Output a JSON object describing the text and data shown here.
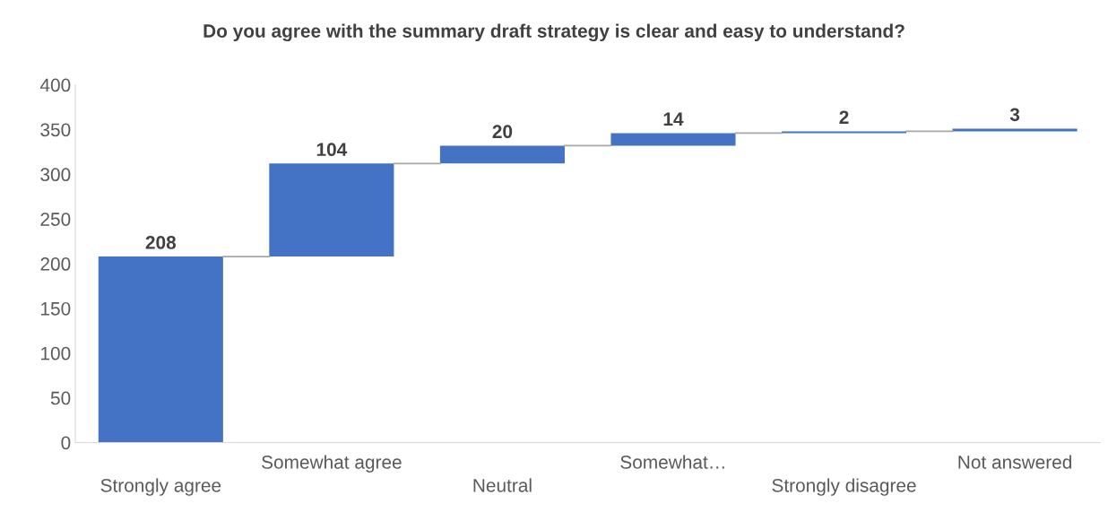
{
  "chart_data": {
    "type": "bar",
    "title": "Do you agree with the summary draft strategy is clear and easy to understand?",
    "categories": [
      "Strongly agree",
      "Somewhat agree",
      "Neutral",
      "Somewhat…",
      "Strongly disagree",
      "Not answered"
    ],
    "values": [
      208,
      104,
      20,
      14,
      2,
      3
    ],
    "base": [
      0,
      208,
      312,
      332,
      346,
      348
    ],
    "color": "#4472c4",
    "ylim": [
      0,
      400
    ],
    "yticks": [
      0,
      50,
      100,
      150,
      200,
      250,
      300,
      350,
      400
    ],
    "grid": false,
    "data_labels": true
  }
}
